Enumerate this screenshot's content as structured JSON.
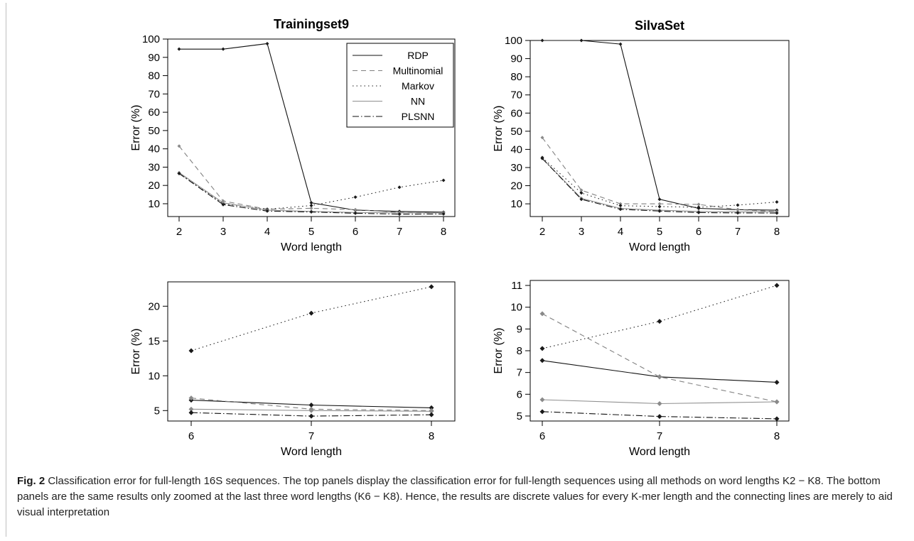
{
  "caption": {
    "label": "Fig. 2",
    "text": "Classification error for full-length 16S sequences. The top panels display the classification error for full-length sequences using all methods on word lengths K2 − K8. The bottom panels are the same results only zoomed at the last three word lengths (K6 − K8). Hence, the results are discrete values for every K-mer length and the connecting lines are merely to aid visual interpretation"
  },
  "chart_data": [
    {
      "type": "line",
      "title": "Trainingset9",
      "xlabel": "Word length",
      "ylabel": "Error (%)",
      "x": [
        2,
        3,
        4,
        5,
        6,
        7,
        8
      ],
      "xlim": [
        2,
        8
      ],
      "ylim": [
        3,
        100
      ],
      "yticks": [
        10,
        20,
        30,
        40,
        50,
        60,
        70,
        80,
        90,
        100
      ],
      "legend": {
        "placement": "top-right",
        "entries": [
          "RDP",
          "Multinomial",
          "Markov",
          "NN",
          "PLSNN"
        ]
      },
      "series": [
        {
          "name": "RDP",
          "values": [
            94.5,
            94.5,
            97.5,
            10.5,
            6.5,
            5.8,
            5.4
          ]
        },
        {
          "name": "Multinomial",
          "values": [
            41.5,
            11.5,
            7,
            7.5,
            6.8,
            5.2,
            5
          ]
        },
        {
          "name": "Markov",
          "values": [
            26.5,
            10,
            7,
            9,
            13.6,
            19,
            22.8
          ]
        },
        {
          "name": "NN",
          "values": [
            27,
            10.5,
            6.5,
            5.8,
            5.2,
            5,
            5
          ]
        },
        {
          "name": "PLSNN",
          "values": [
            26.5,
            9.5,
            6,
            5.5,
            4.8,
            4.3,
            4.4
          ]
        }
      ]
    },
    {
      "type": "line",
      "title": "SilvaSet",
      "xlabel": "Word length",
      "ylabel": "Error (%)",
      "x": [
        2,
        3,
        4,
        5,
        6,
        7,
        8
      ],
      "xlim": [
        2,
        8
      ],
      "ylim": [
        3,
        100
      ],
      "yticks": [
        10,
        20,
        30,
        40,
        50,
        60,
        70,
        80,
        90,
        100
      ],
      "series": [
        {
          "name": "RDP",
          "values": [
            100,
            100,
            98,
            12.5,
            7.5,
            6.8,
            6.5
          ]
        },
        {
          "name": "Multinomial",
          "values": [
            46.5,
            17.5,
            10,
            10,
            9.7,
            6.8,
            5.7
          ]
        },
        {
          "name": "Markov",
          "values": [
            35.5,
            16,
            9,
            8.5,
            8.1,
            9.3,
            11
          ]
        },
        {
          "name": "NN",
          "values": [
            35,
            13,
            7.5,
            6.5,
            5.8,
            5.6,
            5.6
          ]
        },
        {
          "name": "PLSNN",
          "values": [
            35,
            12.5,
            7,
            6,
            5.2,
            5,
            4.9
          ]
        }
      ]
    },
    {
      "type": "line",
      "title": "",
      "xlabel": "Word length",
      "ylabel": "Error (%)",
      "x": [
        6,
        7,
        8
      ],
      "xlim": [
        6,
        8
      ],
      "ylim": [
        3.5,
        23.5
      ],
      "yticks": [
        5,
        10,
        15,
        20
      ],
      "series": [
        {
          "name": "RDP",
          "values": [
            6.5,
            5.8,
            5.4
          ]
        },
        {
          "name": "Multinomial",
          "values": [
            6.8,
            5.2,
            5.0
          ]
        },
        {
          "name": "Markov",
          "values": [
            13.6,
            19.0,
            22.8
          ]
        },
        {
          "name": "NN",
          "values": [
            5.2,
            5.0,
            4.9
          ]
        },
        {
          "name": "PLSNN",
          "values": [
            4.7,
            4.2,
            4.4
          ]
        }
      ]
    },
    {
      "type": "line",
      "title": "",
      "xlabel": "Word length",
      "ylabel": "Error (%)",
      "x": [
        6,
        7,
        8
      ],
      "xlim": [
        6,
        8
      ],
      "ylim": [
        4.77,
        11.23
      ],
      "yticks": [
        5,
        6,
        7,
        8,
        9,
        10,
        11
      ],
      "series": [
        {
          "name": "RDP",
          "values": [
            7.55,
            6.8,
            6.55
          ]
        },
        {
          "name": "Multinomial",
          "values": [
            9.7,
            6.8,
            5.65
          ]
        },
        {
          "name": "Markov",
          "values": [
            8.1,
            9.35,
            11.0
          ]
        },
        {
          "name": "NN",
          "values": [
            5.75,
            5.57,
            5.65
          ]
        },
        {
          "name": "PLSNN",
          "values": [
            5.2,
            4.98,
            4.87
          ]
        }
      ]
    }
  ]
}
